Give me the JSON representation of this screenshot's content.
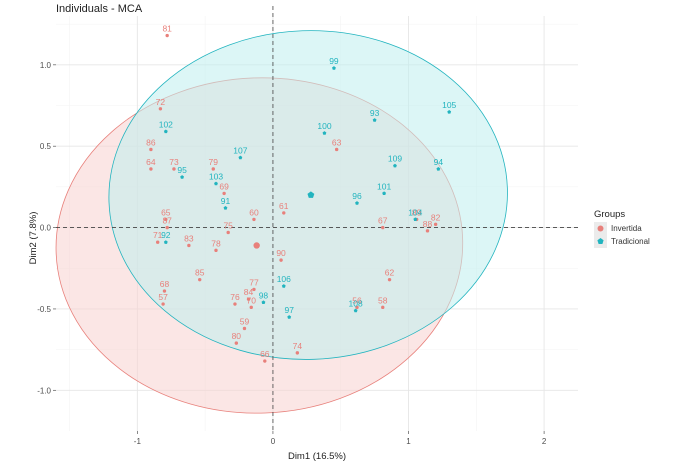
{
  "chart_data": {
    "type": "scatter",
    "title": "Individuals - MCA",
    "xlabel": "Dim1 (16.5%)",
    "ylabel": "Dim2 (7.8%)",
    "xlim": [
      -1.6,
      2.25
    ],
    "ylim": [
      -1.25,
      1.3
    ],
    "xticks": [
      -1,
      0,
      1,
      2
    ],
    "yticks": [
      -1.0,
      -0.5,
      0.0,
      0.5,
      1.0
    ],
    "xtick_labels": [
      "-1",
      "0",
      "1",
      "2"
    ],
    "ytick_labels": [
      "-1.0",
      "-0.5",
      "0.0",
      "0.5",
      "1.0"
    ],
    "legend": {
      "title": "Groups",
      "position": "right",
      "entries": [
        {
          "name": "Invertida",
          "color": "#e8807b"
        },
        {
          "name": "Tradicional",
          "color": "#22b4bf"
        }
      ]
    },
    "ellipses": [
      {
        "group": "Invertida",
        "center": [
          -0.1,
          -0.11
        ],
        "radius_x": 1.5,
        "radius_y": 1.03,
        "rotation_deg": 2,
        "fill": "#f7d2d0",
        "stroke": "#e8807b"
      },
      {
        "group": "Tradicional",
        "center": [
          0.26,
          0.2
        ],
        "radius_x": 1.47,
        "radius_y": 1.01,
        "rotation_deg": 2,
        "fill": "#bfeeee",
        "stroke": "#22b4bf"
      }
    ],
    "centroids": [
      {
        "group": "Invertida",
        "x": -0.12,
        "y": -0.11
      },
      {
        "group": "Tradicional",
        "x": 0.28,
        "y": 0.2
      }
    ],
    "series": [
      {
        "name": "Invertida",
        "color": "#e8807b",
        "points": [
          {
            "label": "81",
            "x": -0.78,
            "y": 1.18
          },
          {
            "label": "72",
            "x": -0.83,
            "y": 0.73
          },
          {
            "label": "86",
            "x": -0.9,
            "y": 0.48
          },
          {
            "label": "63",
            "x": 0.47,
            "y": 0.48
          },
          {
            "label": "64",
            "x": -0.9,
            "y": 0.36
          },
          {
            "label": "73",
            "x": -0.73,
            "y": 0.36
          },
          {
            "label": "79",
            "x": -0.44,
            "y": 0.36
          },
          {
            "label": "69",
            "x": -0.36,
            "y": 0.21
          },
          {
            "label": "65",
            "x": -0.79,
            "y": 0.05
          },
          {
            "label": "60",
            "x": -0.14,
            "y": 0.05
          },
          {
            "label": "61",
            "x": 0.08,
            "y": 0.09
          },
          {
            "label": "67",
            "x": 0.81,
            "y": 0.0
          },
          {
            "label": "87",
            "x": -0.78,
            "y": 0.0
          },
          {
            "label": "75",
            "x": -0.33,
            "y": -0.03
          },
          {
            "label": "71",
            "x": -0.85,
            "y": -0.09
          },
          {
            "label": "83",
            "x": -0.62,
            "y": -0.11
          },
          {
            "label": "78",
            "x": -0.42,
            "y": -0.14
          },
          {
            "label": "89",
            "x": 1.06,
            "y": 0.05
          },
          {
            "label": "82",
            "x": 1.2,
            "y": 0.02
          },
          {
            "label": "88",
            "x": 1.14,
            "y": -0.02
          },
          {
            "label": "90",
            "x": 0.06,
            "y": -0.2
          },
          {
            "label": "85",
            "x": -0.54,
            "y": -0.32
          },
          {
            "label": "62",
            "x": 0.86,
            "y": -0.32
          },
          {
            "label": "77",
            "x": -0.14,
            "y": -0.38
          },
          {
            "label": "68",
            "x": -0.8,
            "y": -0.39
          },
          {
            "label": "84",
            "x": -0.18,
            "y": -0.44
          },
          {
            "label": "57",
            "x": -0.81,
            "y": -0.47
          },
          {
            "label": "76",
            "x": -0.28,
            "y": -0.47
          },
          {
            "label": "70",
            "x": -0.16,
            "y": -0.49
          },
          {
            "label": "56",
            "x": 0.62,
            "y": -0.49
          },
          {
            "label": "58",
            "x": 0.81,
            "y": -0.49
          },
          {
            "label": "59",
            "x": -0.21,
            "y": -0.62
          },
          {
            "label": "80",
            "x": -0.27,
            "y": -0.71
          },
          {
            "label": "74",
            "x": 0.18,
            "y": -0.77
          },
          {
            "label": "66",
            "x": -0.06,
            "y": -0.82
          }
        ]
      },
      {
        "name": "Tradicional",
        "color": "#22b4bf",
        "points": [
          {
            "label": "99",
            "x": 0.45,
            "y": 0.98
          },
          {
            "label": "105",
            "x": 1.3,
            "y": 0.71
          },
          {
            "label": "93",
            "x": 0.75,
            "y": 0.66
          },
          {
            "label": "102",
            "x": -0.79,
            "y": 0.59
          },
          {
            "label": "100",
            "x": 0.38,
            "y": 0.58
          },
          {
            "label": "107",
            "x": -0.24,
            "y": 0.43
          },
          {
            "label": "109",
            "x": 0.9,
            "y": 0.38
          },
          {
            "label": "94",
            "x": 1.22,
            "y": 0.36
          },
          {
            "label": "95",
            "x": -0.67,
            "y": 0.31
          },
          {
            "label": "103",
            "x": -0.42,
            "y": 0.27
          },
          {
            "label": "101",
            "x": 0.82,
            "y": 0.21
          },
          {
            "label": "96",
            "x": 0.62,
            "y": 0.15
          },
          {
            "label": "91",
            "x": -0.35,
            "y": 0.12
          },
          {
            "label": "104",
            "x": 1.05,
            "y": 0.05
          },
          {
            "label": "92",
            "x": -0.79,
            "y": -0.09
          },
          {
            "label": "106",
            "x": 0.08,
            "y": -0.36
          },
          {
            "label": "98",
            "x": -0.07,
            "y": -0.46
          },
          {
            "label": "108",
            "x": 0.61,
            "y": -0.51
          },
          {
            "label": "97",
            "x": 0.12,
            "y": -0.55
          }
        ]
      }
    ]
  }
}
